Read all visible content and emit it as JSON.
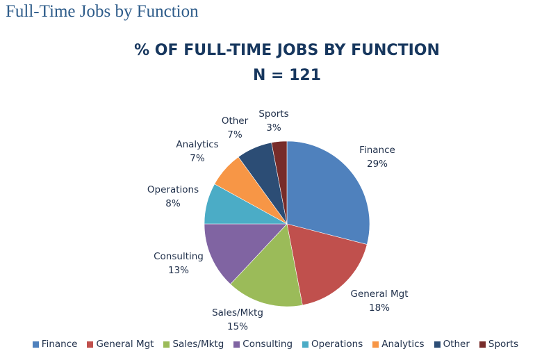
{
  "page": {
    "heading": "Full-Time Jobs by Function"
  },
  "chart_data": {
    "type": "pie",
    "title": "% OF FULL-TIME JOBS BY FUNCTION",
    "subtitle": "N = 121",
    "categories": [
      "Finance",
      "General Mgt",
      "Sales/Mktg",
      "Consulting",
      "Operations",
      "Analytics",
      "Other",
      "Sports"
    ],
    "values": [
      29,
      18,
      15,
      13,
      8,
      7,
      7,
      3
    ],
    "value_labels": [
      "29%",
      "18%",
      "15%",
      "13%",
      "8%",
      "7%",
      "7%",
      "3%"
    ],
    "unit": "%",
    "colors": [
      "#4f81bd",
      "#c0504d",
      "#9bbb59",
      "#8064a2",
      "#4bacc6",
      "#f79646",
      "#2c4d75",
      "#772c2a"
    ],
    "legend_position": "bottom"
  }
}
